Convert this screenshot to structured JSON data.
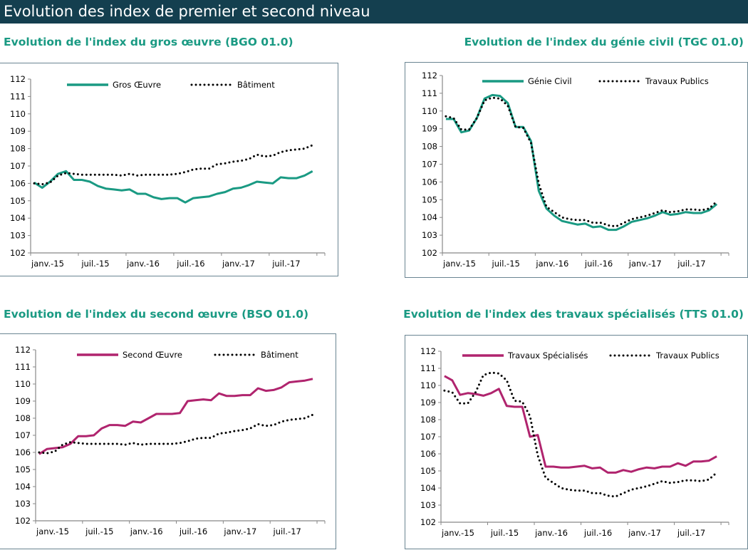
{
  "header": {
    "title": "Evolution des index de premier et second niveau"
  },
  "colors": {
    "teal": "#1a9a83",
    "magenta": "#b0246e",
    "dotted": "#000000",
    "header_bg": "#143f4f"
  },
  "chart_data": [
    {
      "type": "line",
      "title": "Evolution de l'index du gros œuvre (BGO 01.0)",
      "ylim": [
        102,
        112
      ],
      "yticks": [
        "102",
        "103",
        "104",
        "105",
        "106",
        "107",
        "108",
        "109",
        "110",
        "111",
        "112"
      ],
      "xticks": [
        "janv.-15",
        "juil.-15",
        "janv.-16",
        "juil.-16",
        "janv.-17",
        "juil.-17"
      ],
      "x": "monthly, janv. 2015 - déc. 2017",
      "series": [
        {
          "name": "Gros Œuvre",
          "style": "solid",
          "color": "#1a9a83",
          "values": [
            106.05,
            105.75,
            106.1,
            106.55,
            106.7,
            106.2,
            106.2,
            106.1,
            105.85,
            105.7,
            105.65,
            105.6,
            105.65,
            105.4,
            105.4,
            105.2,
            105.1,
            105.15,
            105.15,
            104.9,
            105.15,
            105.2,
            105.25,
            105.4,
            105.5,
            105.7,
            105.75,
            105.9,
            106.1,
            106.05,
            106.0,
            106.35,
            106.3,
            106.3,
            106.45,
            106.7
          ]
        },
        {
          "name": "Bâtiment",
          "style": "dotted",
          "color": "#000000",
          "values": [
            106.0,
            105.95,
            106.05,
            106.45,
            106.6,
            106.55,
            106.5,
            106.5,
            106.5,
            106.5,
            106.5,
            106.45,
            106.55,
            106.45,
            106.5,
            106.5,
            106.5,
            106.5,
            106.55,
            106.65,
            106.8,
            106.85,
            106.85,
            107.1,
            107.15,
            107.25,
            107.3,
            107.4,
            107.65,
            107.55,
            107.6,
            107.8,
            107.9,
            107.95,
            108.0,
            108.2
          ]
        }
      ]
    },
    {
      "type": "line",
      "title": "Evolution de l'index du génie civil (TGC 01.0)",
      "ylim": [
        102,
        112
      ],
      "yticks": [
        "102",
        "103",
        "104",
        "105",
        "106",
        "107",
        "108",
        "109",
        "110",
        "111",
        "112"
      ],
      "xticks": [
        "janv.-15",
        "juil.-15",
        "janv.-16",
        "juil.-16",
        "janv.-17",
        "juil.-17"
      ],
      "x": "monthly, janv. 2015 - déc. 2017",
      "series": [
        {
          "name": "Génie Civil",
          "style": "solid",
          "color": "#1a9a83",
          "values": [
            109.55,
            109.55,
            108.8,
            108.9,
            109.6,
            110.7,
            110.9,
            110.85,
            110.45,
            109.1,
            109.1,
            108.3,
            105.5,
            104.5,
            104.1,
            103.8,
            103.7,
            103.6,
            103.65,
            103.45,
            103.5,
            103.3,
            103.3,
            103.5,
            103.75,
            103.85,
            103.95,
            104.1,
            104.3,
            104.15,
            104.2,
            104.3,
            104.25,
            104.25,
            104.4,
            104.75
          ]
        },
        {
          "name": "Travaux Publics",
          "style": "dotted",
          "color": "#000000",
          "values": [
            109.7,
            109.6,
            108.95,
            108.95,
            109.6,
            110.6,
            110.75,
            110.7,
            110.3,
            109.1,
            109.05,
            108.2,
            105.9,
            104.6,
            104.3,
            104.0,
            103.9,
            103.85,
            103.85,
            103.7,
            103.7,
            103.55,
            103.5,
            103.7,
            103.9,
            104.0,
            104.1,
            104.25,
            104.4,
            104.3,
            104.35,
            104.45,
            104.45,
            104.4,
            104.5,
            104.9
          ]
        }
      ]
    },
    {
      "type": "line",
      "title": "Evolution de l'index du second œuvre (BSO 01.0)",
      "ylim": [
        102,
        112
      ],
      "yticks": [
        "102",
        "103",
        "104",
        "105",
        "106",
        "107",
        "108",
        "109",
        "110",
        "111",
        "112"
      ],
      "xticks": [
        "janv.-15",
        "juil.-15",
        "janv.-16",
        "juil.-16",
        "janv.-17",
        "juil.-17"
      ],
      "x": "monthly, janv. 2015 - déc. 2017",
      "series": [
        {
          "name": "Second Œuvre",
          "style": "solid",
          "color": "#b0246e",
          "values": [
            105.9,
            106.2,
            106.25,
            106.3,
            106.5,
            106.95,
            106.95,
            107.0,
            107.4,
            107.6,
            107.6,
            107.55,
            107.8,
            107.75,
            108.0,
            108.25,
            108.25,
            108.25,
            108.3,
            109.0,
            109.05,
            109.1,
            109.05,
            109.45,
            109.3,
            109.3,
            109.35,
            109.35,
            109.75,
            109.6,
            109.65,
            109.8,
            110.1,
            110.15,
            110.2,
            110.3
          ]
        },
        {
          "name": "Bâtiment",
          "style": "dotted",
          "color": "#000000",
          "values": [
            106.0,
            105.95,
            106.05,
            106.45,
            106.6,
            106.55,
            106.5,
            106.5,
            106.5,
            106.5,
            106.5,
            106.45,
            106.55,
            106.45,
            106.5,
            106.5,
            106.5,
            106.5,
            106.55,
            106.65,
            106.8,
            106.85,
            106.85,
            107.1,
            107.15,
            107.25,
            107.3,
            107.4,
            107.65,
            107.55,
            107.6,
            107.8,
            107.9,
            107.95,
            108.0,
            108.2
          ]
        }
      ]
    },
    {
      "type": "line",
      "title": "Evolution de l'index des travaux spécialisés (TTS 01.0)",
      "ylim": [
        102,
        112
      ],
      "yticks": [
        "102",
        "103",
        "104",
        "105",
        "106",
        "107",
        "108",
        "109",
        "110",
        "111",
        "112"
      ],
      "xticks": [
        "janv.-15",
        "juil.-15",
        "janv.-16",
        "juil.-16",
        "janv.-17",
        "juil.-17"
      ],
      "x": "monthly, janv. 2015 - déc. 2017",
      "series": [
        {
          "name": "Travaux Spécialisés",
          "style": "solid",
          "color": "#b0246e",
          "values": [
            110.55,
            110.3,
            109.45,
            109.55,
            109.5,
            109.4,
            109.55,
            109.8,
            108.8,
            108.75,
            108.75,
            107.0,
            107.1,
            105.25,
            105.25,
            105.2,
            105.2,
            105.25,
            105.3,
            105.15,
            105.2,
            104.9,
            104.9,
            105.05,
            104.95,
            105.1,
            105.2,
            105.15,
            105.25,
            105.25,
            105.45,
            105.3,
            105.55,
            105.55,
            105.6,
            105.85
          ]
        },
        {
          "name": "Travaux Publics",
          "style": "dotted",
          "color": "#000000",
          "values": [
            109.7,
            109.6,
            108.95,
            108.95,
            109.6,
            110.6,
            110.75,
            110.7,
            110.3,
            109.1,
            109.05,
            108.2,
            105.9,
            104.6,
            104.3,
            104.0,
            103.9,
            103.85,
            103.85,
            103.7,
            103.7,
            103.55,
            103.5,
            103.7,
            103.9,
            104.0,
            104.1,
            104.25,
            104.4,
            104.3,
            104.35,
            104.45,
            104.45,
            104.4,
            104.5,
            104.9
          ]
        }
      ]
    }
  ]
}
